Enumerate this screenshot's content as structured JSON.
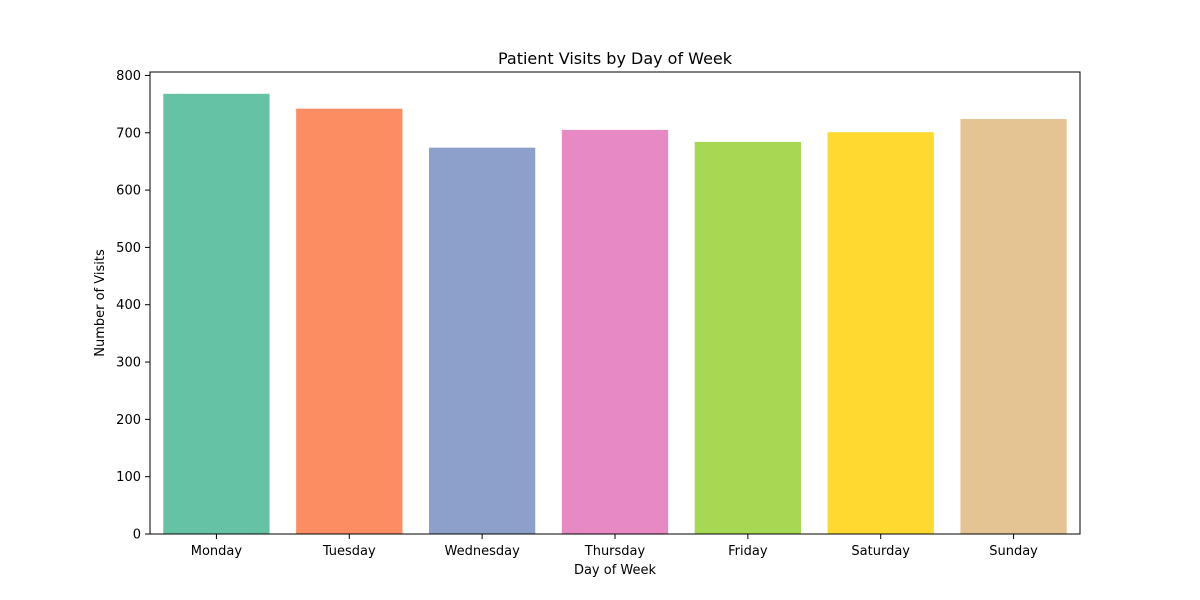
{
  "chart_data": {
    "type": "bar",
    "title": "Patient Visits by Day of Week",
    "xlabel": "Day of Week",
    "ylabel": "Number of Visits",
    "categories": [
      "Monday",
      "Tuesday",
      "Wednesday",
      "Thursday",
      "Friday",
      "Saturday",
      "Sunday"
    ],
    "values": [
      768,
      742,
      674,
      705,
      684,
      701,
      724
    ],
    "colors": [
      "#66c2a5",
      "#fc8d62",
      "#8da0cb",
      "#e78ac3",
      "#a6d854",
      "#ffd92f",
      "#e5c494"
    ],
    "ylim": [
      0,
      806
    ],
    "yticks": [
      0,
      100,
      200,
      300,
      400,
      500,
      600,
      700,
      800
    ],
    "grid": false,
    "legend": false
  }
}
